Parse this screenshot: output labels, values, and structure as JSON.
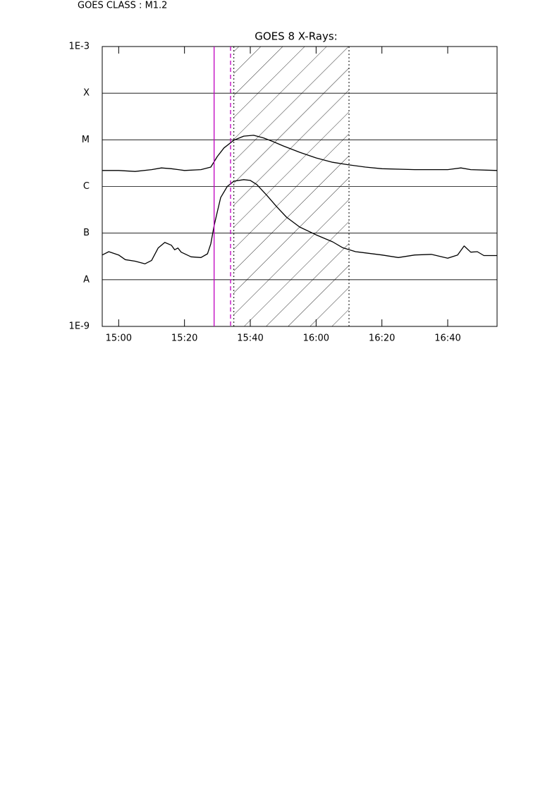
{
  "chart_data": {
    "type": "line",
    "header": "GOES CLASS : M1.2",
    "title": "GOES 8 X-Rays:",
    "log_y": true,
    "grid": true,
    "xlim": [
      "14:55",
      "16:55"
    ],
    "xticks": [
      "15:00",
      "15:20",
      "15:40",
      "16:00",
      "16:20",
      "16:40"
    ],
    "ylim": [
      1e-09,
      0.001
    ],
    "yticks": [
      {
        "value": 1e-09,
        "label": "1E-9"
      },
      {
        "value": 1e-08,
        "label": "A"
      },
      {
        "value": 1e-07,
        "label": "B"
      },
      {
        "value": 1e-06,
        "label": "C"
      },
      {
        "value": 1e-05,
        "label": "M"
      },
      {
        "value": 0.0001,
        "label": "X"
      },
      {
        "value": 0.001,
        "label": "1E-3"
      }
    ],
    "vlines": [
      {
        "x": "15:29",
        "color": "#c000c0",
        "style": "solid"
      },
      {
        "x": "15:34",
        "color": "#c000c0",
        "style": "dashed"
      }
    ],
    "shaded_interval": {
      "x": [
        "15:35",
        "16:10"
      ],
      "color": "#000000",
      "style": "dotted"
    },
    "series": [
      {
        "color": "#000000",
        "x": [
          "14:55",
          "15:00",
          "15:05",
          "15:10",
          "15:13",
          "15:16",
          "15:20",
          "15:25",
          "15:28",
          "15:30",
          "15:32",
          "15:35",
          "15:38",
          "15:41",
          "15:44",
          "15:47",
          "15:50",
          "15:55",
          "16:00",
          "16:05",
          "16:10",
          "16:15",
          "16:20",
          "16:30",
          "16:40",
          "16:44",
          "16:47",
          "16:55"
        ],
        "values": [
          2.2e-06,
          2.2e-06,
          2.1e-06,
          2.3e-06,
          2.5e-06,
          2.4e-06,
          2.2e-06,
          2.3e-06,
          2.6e-06,
          4.4e-06,
          6.7e-06,
          9.8e-06,
          1.2e-05,
          1.25e-05,
          1.1e-05,
          9.1e-06,
          7.4e-06,
          5.4e-06,
          4.1e-06,
          3.3e-06,
          2.9e-06,
          2.6e-06,
          2.4e-06,
          2.3e-06,
          2.3e-06,
          2.5e-06,
          2.3e-06,
          2.2e-06
        ]
      },
      {
        "color": "#000000",
        "x": [
          "14:55",
          "14:57",
          "15:00",
          "15:02",
          "15:05",
          "15:08",
          "15:10",
          "15:12",
          "15:14",
          "15:16",
          "15:17",
          "15:18",
          "15:19",
          "15:22",
          "15:25",
          "15:27",
          "15:28",
          "15:29",
          "15:30",
          "15:31",
          "15:33",
          "15:35",
          "15:38",
          "15:40",
          "15:42",
          "15:45",
          "15:48",
          "15:51",
          "15:55",
          "16:00",
          "16:05",
          "16:08",
          "16:12",
          "16:20",
          "16:25",
          "16:30",
          "16:35",
          "16:40",
          "16:43",
          "16:45",
          "16:47",
          "16:49",
          "16:51",
          "16:55"
        ],
        "values": [
          3.4e-08,
          4e-08,
          3.4e-08,
          2.7e-08,
          2.5e-08,
          2.2e-08,
          2.6e-08,
          4.8e-08,
          6.3e-08,
          5.5e-08,
          4.4e-08,
          4.8e-08,
          3.9e-08,
          3.1e-08,
          3e-08,
          3.6e-08,
          5.9e-08,
          1.45e-07,
          2.9e-07,
          5.8e-07,
          1e-06,
          1.3e-06,
          1.4e-06,
          1.35e-06,
          1.1e-06,
          6.5e-07,
          3.7e-07,
          2.2e-07,
          1.35e-07,
          9.2e-08,
          6.5e-08,
          4.9e-08,
          4e-08,
          3.4e-08,
          3e-08,
          3.4e-08,
          3.5e-08,
          2.9e-08,
          3.4e-08,
          5.3e-08,
          3.9e-08,
          4e-08,
          3.3e-08,
          3.3e-08
        ]
      }
    ]
  }
}
